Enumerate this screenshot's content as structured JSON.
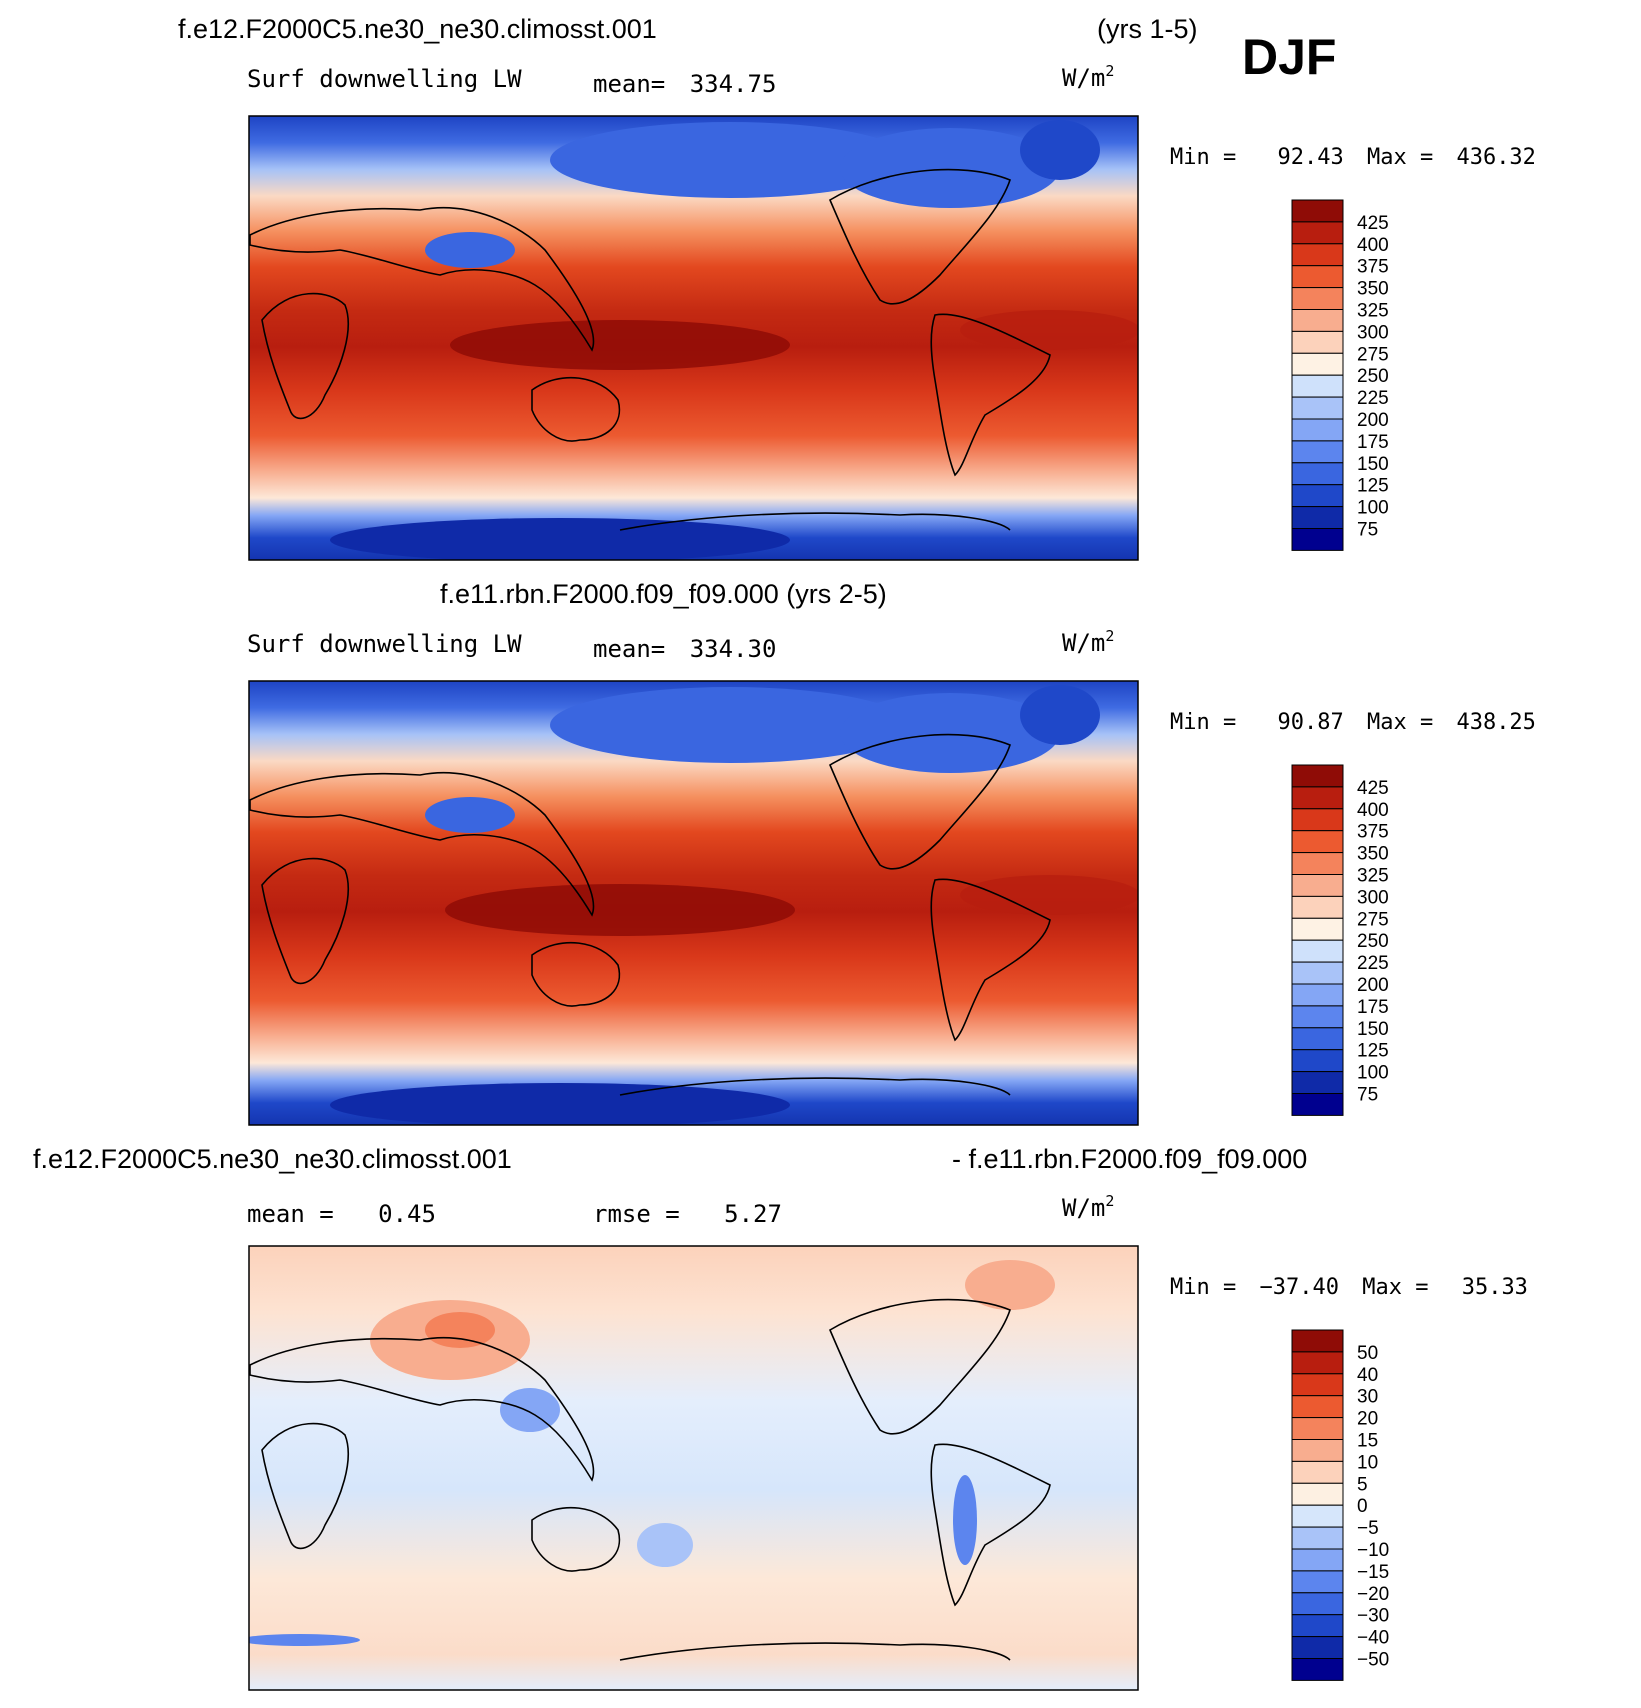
{
  "season": "DJF",
  "colors": {
    "abs_levels": [
      "#00008f",
      "#0f2aa8",
      "#1f48c9",
      "#3a66e0",
      "#5c85ee",
      "#84a6f5",
      "#a9c3f8",
      "#cfe1fb",
      "#fef2e4",
      "#fcd2bb",
      "#f8ad8f",
      "#f4835c",
      "#ec5a30",
      "#d9381a",
      "#b81e0f",
      "#8f0c06"
    ],
    "diff_levels": [
      "#00008f",
      "#0f2aa8",
      "#1f48c9",
      "#3a66e0",
      "#5c85ee",
      "#84a6f5",
      "#a9c3f8",
      "#d6e6fb",
      "#fdf0e2",
      "#fcd2bb",
      "#f8ad8f",
      "#f4835c",
      "#ec5a30",
      "#d9381a",
      "#b81e0f",
      "#8f0c06"
    ]
  },
  "chart_data": [
    {
      "type": "heatmap",
      "case": "f.e12.F2000C5.ne30_ne30.climosst.001",
      "years": "(yrs 1-5)",
      "variable": "Surf downwelling LW",
      "mean_label": "mean=",
      "mean": "334.75",
      "units": "W/m",
      "units_sup": "2",
      "min_label": "Min =",
      "min": "92.43",
      "max_label": "Max =",
      "max": "436.32",
      "colorbar_labels": [
        "425",
        "400",
        "375",
        "350",
        "325",
        "300",
        "275",
        "250",
        "225",
        "200",
        "175",
        "150",
        "125",
        "100",
        "75"
      ],
      "extent": {
        "lon": [
          0,
          360
        ],
        "lat": [
          -90,
          90
        ]
      }
    },
    {
      "type": "heatmap",
      "case": "f.e11.rbn.F2000.f09_f09.000 (yrs 2-5)",
      "variable": "Surf downwelling LW",
      "mean_label": "mean=",
      "mean": "334.30",
      "units": "W/m",
      "units_sup": "2",
      "min_label": "Min =",
      "min": "90.87",
      "max_label": "Max =",
      "max": "438.25",
      "colorbar_labels": [
        "425",
        "400",
        "375",
        "350",
        "325",
        "300",
        "275",
        "250",
        "225",
        "200",
        "175",
        "150",
        "125",
        "100",
        "75"
      ],
      "extent": {
        "lon": [
          0,
          360
        ],
        "lat": [
          -90,
          90
        ]
      }
    },
    {
      "type": "heatmap",
      "case_left": "f.e12.F2000C5.ne30_ne30.climosst.001",
      "case_right": "- f.e11.rbn.F2000.f09_f09.000",
      "mean_label": "mean =",
      "mean": "0.45",
      "rmse_label": "rmse =",
      "rmse": "5.27",
      "units": "W/m",
      "units_sup": "2",
      "min_label": "Min =",
      "min": "−37.40",
      "max_label": "Max =",
      "max": "35.33",
      "colorbar_labels": [
        "50",
        "40",
        "30",
        "20",
        "15",
        "10",
        "5",
        "0",
        "−5",
        "−10",
        "−15",
        "−20",
        "−30",
        "−40",
        "−50"
      ],
      "extent": {
        "lon": [
          0,
          360
        ],
        "lat": [
          -90,
          90
        ]
      }
    }
  ]
}
